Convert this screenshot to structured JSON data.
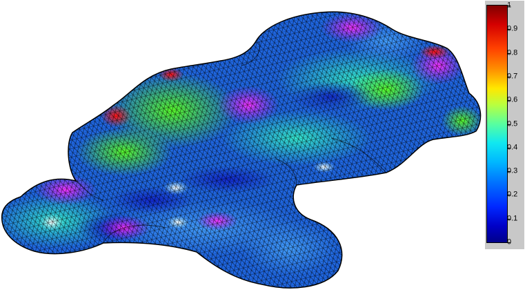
{
  "colorbar": {
    "ticks": [
      "1",
      "0.9",
      "0.8",
      "0.7",
      "0.6",
      "0.5",
      "0.4",
      "0.3",
      "0.2",
      "0.1",
      "0"
    ],
    "range": [
      0,
      1
    ],
    "colormap": "jet"
  },
  "surface": {
    "base_color": "#1f66e0",
    "mesh_color": "#000000",
    "background": "#ffffff"
  }
}
